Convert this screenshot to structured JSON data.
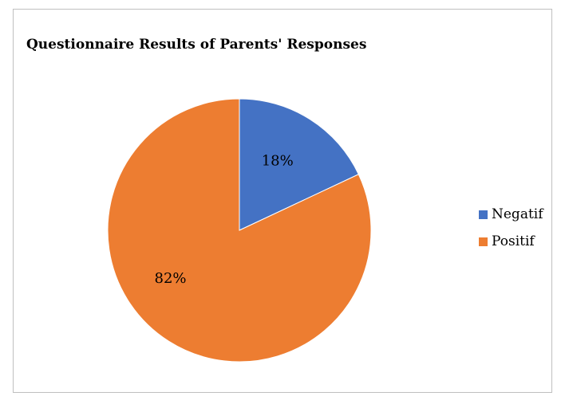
{
  "chart_data": {
    "type": "pie",
    "title": "Questionnaire Results of Parents' Responses",
    "categories": [
      "Negatif",
      "Positif"
    ],
    "values": [
      18,
      82
    ],
    "labels": [
      "18%",
      "82%"
    ],
    "colors": [
      "#4472C4",
      "#ED7D31"
    ],
    "legend_position": "right"
  }
}
